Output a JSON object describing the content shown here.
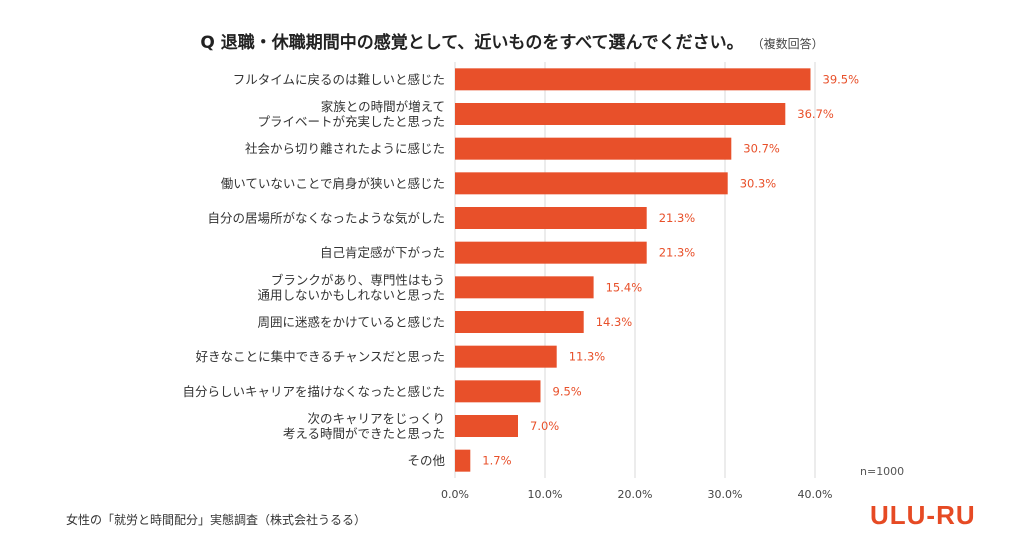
{
  "title": "Q 退職・休職期間中の感覚として、近いものをすべて選んでください。",
  "title_note": "（複数回答）",
  "sample_note": "n=1000",
  "source": "女性の「就労と時間配分」実態調査（株式会社うるる）",
  "logo_text": "ULU-RU",
  "colors": {
    "bar": "#e8502a",
    "value_label": "#e8502a",
    "grid": "#d9d9d9"
  },
  "chart_data": {
    "type": "bar",
    "orientation": "horizontal",
    "categories": [
      [
        "フルタイムに戻るのは難しいと感じた"
      ],
      [
        "家族との時間が増えて",
        "プライベートが充実したと思った"
      ],
      [
        "社会から切り離されたように感じた"
      ],
      [
        "働いていないことで肩身が狭いと感じた"
      ],
      [
        "自分の居場所がなくなったような気がした"
      ],
      [
        "自己肯定感が下がった"
      ],
      [
        "ブランクがあり、専門性はもう",
        "通用しないかもしれないと思った"
      ],
      [
        "周囲に迷惑をかけていると感じた"
      ],
      [
        "好きなことに集中できるチャンスだと思った"
      ],
      [
        "自分らしいキャリアを描けなくなったと感じた"
      ],
      [
        "次のキャリアをじっくり",
        "考える時間ができたと思った"
      ],
      [
        "その他"
      ]
    ],
    "values": [
      39.5,
      36.7,
      30.7,
      30.3,
      21.3,
      21.3,
      15.4,
      14.3,
      11.3,
      9.5,
      7.0,
      1.7
    ],
    "value_labels": [
      "39.5%",
      "36.7%",
      "30.7%",
      "30.3%",
      "21.3%",
      "21.3%",
      "15.4%",
      "14.3%",
      "11.3%",
      "9.5%",
      "7.0%",
      "1.7%"
    ],
    "xlim": [
      0,
      40
    ],
    "xticks": [
      0,
      10,
      20,
      30,
      40
    ],
    "xtick_labels": [
      "0.0%",
      "10.0%",
      "20.0%",
      "30.0%",
      "40.0%"
    ],
    "grid": "vertical"
  }
}
